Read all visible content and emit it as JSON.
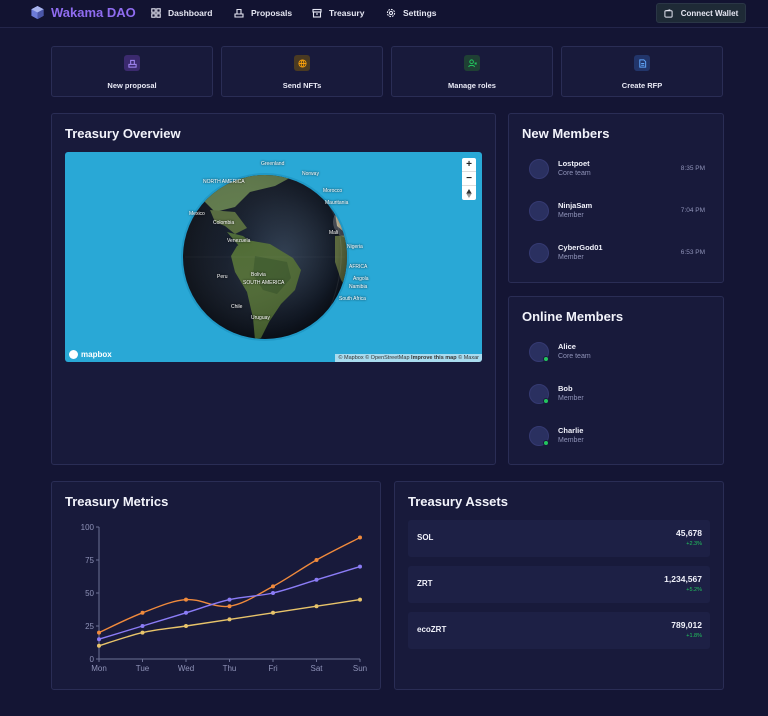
{
  "nav": {
    "brand": "Wakama DAO",
    "items": [
      {
        "label": "Dashboard",
        "icon": "grid-icon"
      },
      {
        "label": "Proposals",
        "icon": "ballot-icon"
      },
      {
        "label": "Treasury",
        "icon": "vault-icon"
      },
      {
        "label": "Settings",
        "icon": "gear-icon"
      }
    ],
    "connect_label": "Connect Wallet"
  },
  "actions": [
    {
      "label": "New proposal",
      "icon": "ballot-icon",
      "color": "#8b5cf6"
    },
    {
      "label": "Send NFTs",
      "icon": "globe-icon",
      "color": "#f59e0b"
    },
    {
      "label": "Manage roles",
      "icon": "user-roles-icon",
      "color": "#22c55e"
    },
    {
      "label": "Create RFP",
      "icon": "document-icon",
      "color": "#3b82f6"
    }
  ],
  "treasury_overview": {
    "title": "Treasury Overview",
    "map": {
      "logo": "mapbox",
      "attribution": "© Mapbox © OpenStreetMap",
      "improve": "Improve this map",
      "attribution_tail": "© Maxar",
      "labels": [
        "Greenland",
        "Norway",
        "NORTH AMERICA",
        "Mexico",
        "Venezuela",
        "Colombia",
        "Peru",
        "Bolivia",
        "Chile",
        "Uruguay",
        "SOUTH AMERICA",
        "Mauritania",
        "Mali",
        "Nigeria",
        "AFRICA",
        "Angola",
        "Namibia",
        "South Africa",
        "Morocco"
      ]
    }
  },
  "new_members": {
    "title": "New Members",
    "items": [
      {
        "name": "Lostpoet",
        "role": "Core team",
        "time": "8:35 PM"
      },
      {
        "name": "NinjaSam",
        "role": "Member",
        "time": "7:04 PM"
      },
      {
        "name": "CyberGod01",
        "role": "Member",
        "time": "6:53 PM"
      }
    ]
  },
  "online_members": {
    "title": "Online Members",
    "items": [
      {
        "name": "Alice",
        "role": "Core team"
      },
      {
        "name": "Bob",
        "role": "Member"
      },
      {
        "name": "Charlie",
        "role": "Member"
      }
    ]
  },
  "metrics": {
    "title": "Treasury Metrics",
    "chart_data": {
      "type": "line",
      "categories": [
        "Mon",
        "Tue",
        "Wed",
        "Thu",
        "Fri",
        "Sat",
        "Sun"
      ],
      "ylim": [
        0,
        100
      ],
      "yticks": [
        0,
        25,
        50,
        75,
        100
      ],
      "grid": false,
      "series": [
        {
          "color": "#f08a3c",
          "values": [
            20,
            35,
            45,
            40,
            55,
            75,
            92
          ]
        },
        {
          "color": "#8b7cf6",
          "values": [
            15,
            25,
            35,
            45,
            50,
            60,
            70
          ]
        },
        {
          "color": "#e8c46a",
          "values": [
            10,
            20,
            25,
            30,
            35,
            40,
            45
          ]
        }
      ]
    }
  },
  "assets": {
    "title": "Treasury Assets",
    "items": [
      {
        "name": "SOL",
        "value": "45,678",
        "change": "+2.3%"
      },
      {
        "name": "ZRT",
        "value": "1,234,567",
        "change": "+5.2%"
      },
      {
        "name": "ecoZRT",
        "value": "789,012",
        "change": "+1.8%"
      }
    ]
  }
}
